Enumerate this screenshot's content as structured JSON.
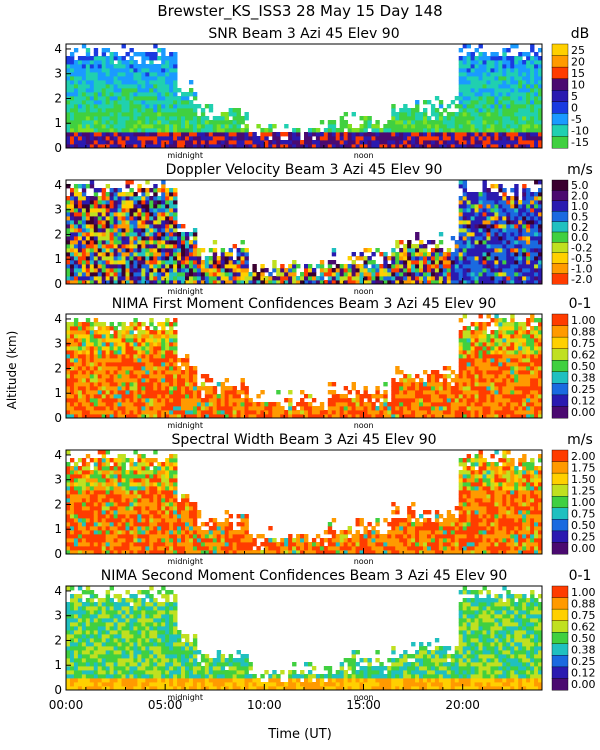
{
  "figure": {
    "title": "Brewster_KS_ISS3  28 May 15 Day 148",
    "ylabel": "Altitude (km)",
    "xlabel": "Time (UT)",
    "xticks": [
      "00:00",
      "05:00",
      "10:00",
      "15:00",
      "20:00"
    ],
    "markers": [
      "midnight",
      "noon"
    ]
  },
  "chart_data": [
    {
      "type": "heatmap",
      "title": "SNR Beam 3 Azi  45 Elev 90",
      "units": "dB",
      "ylim": [
        0,
        4.2
      ],
      "yticks": [
        "0",
        "1",
        "2",
        "3",
        "4"
      ],
      "colorbar": [
        "25",
        "20",
        "15",
        "10",
        "5",
        "0",
        "-5",
        "-10",
        "-15"
      ],
      "colors": [
        "#ffd000",
        "#ff9a00",
        "#ff3c00",
        "#4a0a70",
        "#2a1ab0",
        "#1a3ae0",
        "#1a9aff",
        "#20d0b0",
        "#40d040",
        "#80e020"
      ]
    },
    {
      "type": "heatmap",
      "title": "Doppler Velocity Beam 3 Azi  45 Elev 90",
      "units": "m/s",
      "ylim": [
        0,
        4.2
      ],
      "yticks": [
        "0",
        "1",
        "2",
        "3",
        "4"
      ],
      "colorbar": [
        "5.0",
        "2.0",
        "1.0",
        "0.5",
        "0.2",
        "0.0",
        "-0.2",
        "-0.5",
        "-1.0",
        "-2.0"
      ],
      "colors": [
        "#3a0030",
        "#4a0a70",
        "#2a1ab0",
        "#1a6ae0",
        "#20c0c0",
        "#40d040",
        "#c0e020",
        "#ffd000",
        "#ff9a00",
        "#ff3c00"
      ]
    },
    {
      "type": "heatmap",
      "title": "NIMA First Moment Confidences Beam 3 Azi  45 Elev 90",
      "units": "0-1",
      "ylim": [
        0,
        4.2
      ],
      "yticks": [
        "0",
        "1",
        "2",
        "3",
        "4"
      ],
      "colorbar": [
        "1.00",
        "0.88",
        "0.75",
        "0.62",
        "0.50",
        "0.38",
        "0.25",
        "0.12",
        "0.00"
      ],
      "colors": [
        "#ff3c00",
        "#ff9a00",
        "#ffd000",
        "#c0e020",
        "#40d040",
        "#20c0c0",
        "#1a6ae0",
        "#2a1ab0",
        "#4a0a70"
      ]
    },
    {
      "type": "heatmap",
      "title": "Spectral Width Beam 3 Azi  45 Elev 90",
      "units": "m/s",
      "ylim": [
        0,
        4.2
      ],
      "yticks": [
        "0",
        "1",
        "2",
        "3",
        "4"
      ],
      "colorbar": [
        "2.00",
        "1.75",
        "1.50",
        "1.25",
        "1.00",
        "0.75",
        "0.50",
        "0.25",
        "0.00"
      ],
      "colors": [
        "#ff3c00",
        "#ff9a00",
        "#ffd000",
        "#c0e020",
        "#40d040",
        "#20c0c0",
        "#1a6ae0",
        "#2a1ab0",
        "#4a0a70"
      ]
    },
    {
      "type": "heatmap",
      "title": "NIMA Second Moment Confidences Beam 3 Azi  45 Elev 90",
      "units": "0-1",
      "ylim": [
        0,
        4.2
      ],
      "yticks": [
        "0",
        "1",
        "2",
        "3",
        "4"
      ],
      "colorbar": [
        "1.00",
        "0.88",
        "0.75",
        "0.62",
        "0.50",
        "0.38",
        "0.25",
        "0.12",
        "0.00"
      ],
      "colors": [
        "#ff3c00",
        "#ff9a00",
        "#ffd000",
        "#c0e020",
        "#40d040",
        "#20c0c0",
        "#1a6ae0",
        "#2a1ab0",
        "#4a0a70"
      ]
    }
  ]
}
